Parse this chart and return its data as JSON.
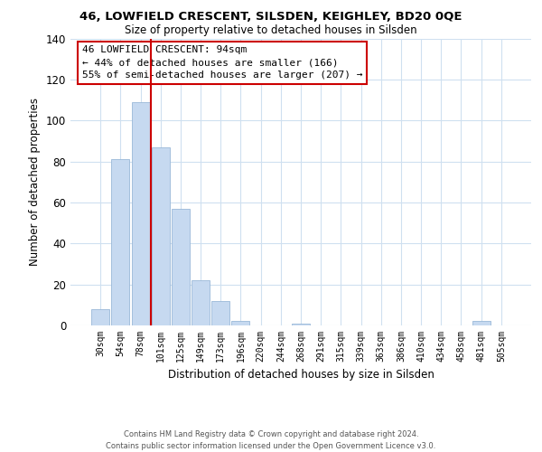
{
  "title": "46, LOWFIELD CRESCENT, SILSDEN, KEIGHLEY, BD20 0QE",
  "subtitle": "Size of property relative to detached houses in Silsden",
  "xlabel": "Distribution of detached houses by size in Silsden",
  "ylabel": "Number of detached properties",
  "bar_labels": [
    "30sqm",
    "54sqm",
    "78sqm",
    "101sqm",
    "125sqm",
    "149sqm",
    "173sqm",
    "196sqm",
    "220sqm",
    "244sqm",
    "268sqm",
    "291sqm",
    "315sqm",
    "339sqm",
    "363sqm",
    "386sqm",
    "410sqm",
    "434sqm",
    "458sqm",
    "481sqm",
    "505sqm"
  ],
  "bar_values": [
    8,
    81,
    109,
    87,
    57,
    22,
    12,
    2,
    0,
    0,
    1,
    0,
    0,
    0,
    0,
    0,
    0,
    0,
    0,
    2,
    0
  ],
  "bar_color": "#c6d9f0",
  "bar_edge_color": "#9ab8d8",
  "vline_color": "#cc0000",
  "annotation_line1": "46 LOWFIELD CRESCENT: 94sqm",
  "annotation_line2": "← 44% of detached houses are smaller (166)",
  "annotation_line3": "55% of semi-detached houses are larger (207) →",
  "annotation_box_color": "#ffffff",
  "annotation_box_edge": "#cc0000",
  "ylim": [
    0,
    140
  ],
  "yticks": [
    0,
    20,
    40,
    60,
    80,
    100,
    120,
    140
  ],
  "background_color": "#ffffff",
  "grid_color": "#cfe0f0",
  "footer_line1": "Contains HM Land Registry data © Crown copyright and database right 2024.",
  "footer_line2": "Contains public sector information licensed under the Open Government Licence v3.0."
}
